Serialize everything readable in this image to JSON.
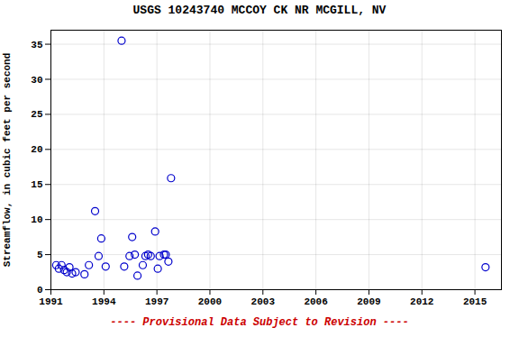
{
  "chart_data": {
    "type": "scatter",
    "title": "USGS 10243740 MCCOY CK NR MCGILL, NV",
    "ylabel": "Streamflow, in cubic feet per second",
    "caption": "---- Provisional Data Subject to Revision ----",
    "x": [
      1991.3,
      1991.45,
      1991.6,
      1991.75,
      1991.9,
      1992.05,
      1992.2,
      1992.4,
      1992.9,
      1993.15,
      1993.5,
      1993.7,
      1993.85,
      1994.1,
      1995.0,
      1995.15,
      1995.45,
      1995.6,
      1995.75,
      1995.9,
      1996.2,
      1996.35,
      1996.5,
      1996.65,
      1996.9,
      1997.05,
      1997.15,
      1997.4,
      1997.5,
      1997.65,
      1997.8,
      2015.6
    ],
    "values": [
      3.5,
      3.0,
      3.5,
      2.8,
      2.5,
      3.2,
      2.3,
      2.5,
      2.2,
      3.5,
      11.2,
      4.8,
      7.3,
      3.3,
      35.5,
      3.3,
      4.8,
      7.5,
      5.0,
      2.0,
      3.5,
      4.8,
      5.0,
      4.8,
      8.3,
      3.0,
      4.8,
      5.0,
      5.0,
      4.0,
      15.9,
      3.2
    ],
    "xlim": [
      1991,
      2016.5
    ],
    "ylim": [
      0,
      37
    ],
    "xticks": [
      1991,
      1994,
      1997,
      2000,
      2003,
      2006,
      2009,
      2012,
      2015
    ],
    "yticks": [
      0,
      5,
      10,
      15,
      20,
      25,
      30,
      35
    ],
    "grid": true,
    "color": "#0000CC",
    "marker": "circle"
  }
}
